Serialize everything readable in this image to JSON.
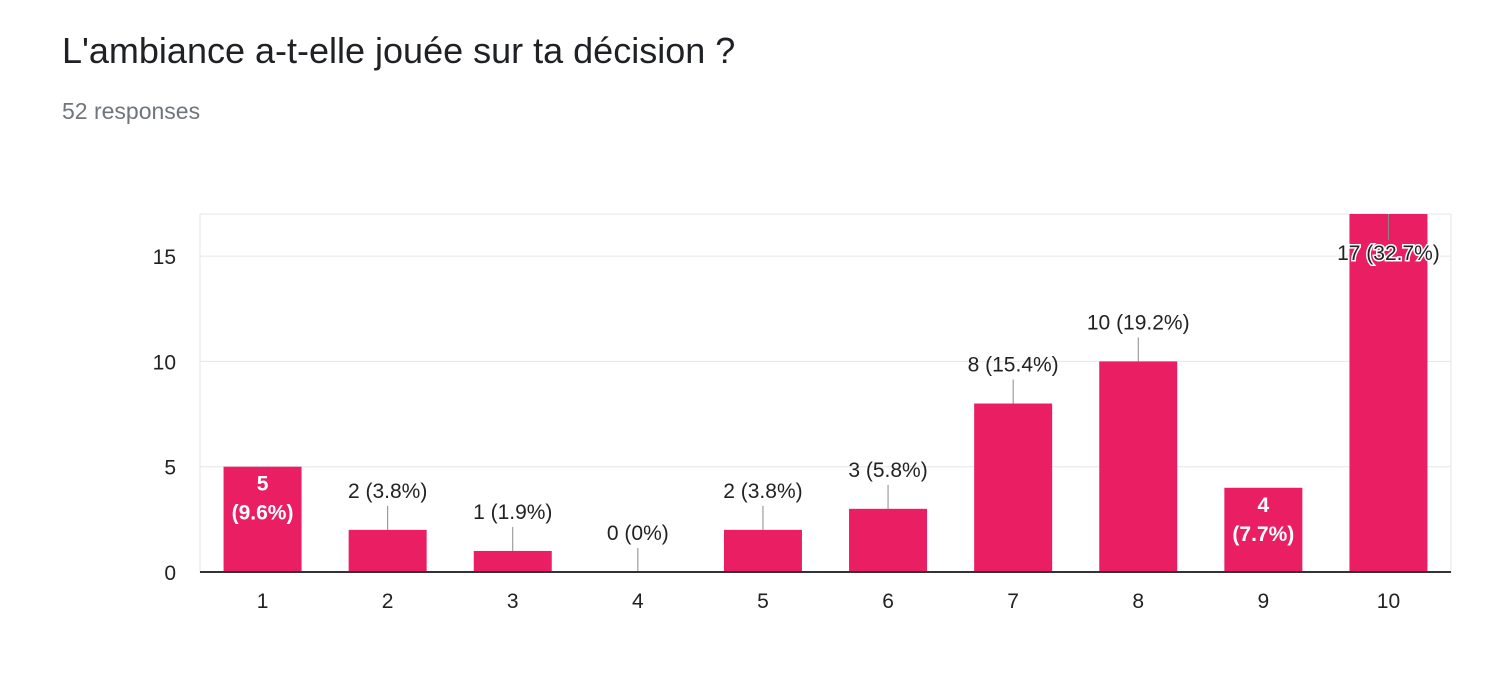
{
  "header": {
    "title": "L'ambiance a-t-elle jouée sur ta décision ?",
    "responses": "52 responses"
  },
  "chart_data": {
    "type": "bar",
    "title": "L'ambiance a-t-elle jouée sur ta décision ?",
    "subtitle": "52 responses",
    "xlabel": "",
    "ylabel": "",
    "categories": [
      "1",
      "2",
      "3",
      "4",
      "5",
      "6",
      "7",
      "8",
      "9",
      "10"
    ],
    "values": [
      5,
      2,
      1,
      0,
      2,
      3,
      8,
      10,
      4,
      17
    ],
    "data_labels": [
      "5 (9.6%)",
      "2 (3.8%)",
      "1 (1.9%)",
      "0 (0%)",
      "2 (3.8%)",
      "3 (5.8%)",
      "8 (15.4%)",
      "10 (19.2%)",
      "4 (7.7%)",
      "17 (32.7%)"
    ],
    "y_ticks": [
      0,
      5,
      10,
      15
    ],
    "ylim": [
      0,
      17
    ],
    "grid": true,
    "legend": "none",
    "colors": {
      "bar": "#e91e63",
      "grid": "#e6e6e6",
      "axis": "#333333",
      "text": "#222222",
      "inside_label": "#ffffff"
    }
  }
}
